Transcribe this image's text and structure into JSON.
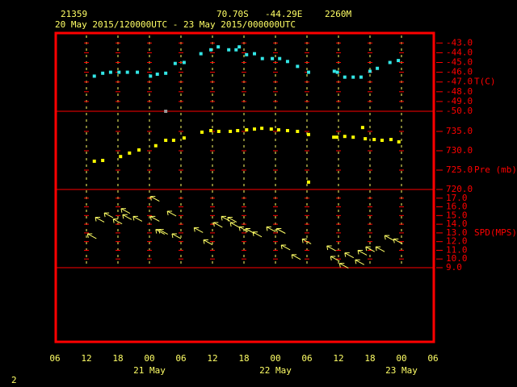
{
  "header": {
    "station": "21359",
    "latitude": "70.70S",
    "longitude": "-44.29E",
    "elevation": "2260M",
    "period": "20 May 2015/120000UTC - 23 May 2015/000000UTC",
    "page": "2"
  },
  "xaxis": {
    "xlim": [
      0,
      72
    ],
    "xticks": [
      {
        "value": 0,
        "label": "06"
      },
      {
        "value": 6,
        "label": "12"
      },
      {
        "value": 12,
        "label": "18"
      },
      {
        "value": 18,
        "label": "00"
      },
      {
        "value": 24,
        "label": "06"
      },
      {
        "value": 30,
        "label": "12"
      },
      {
        "value": 36,
        "label": "18"
      },
      {
        "value": 42,
        "label": "00"
      },
      {
        "value": 48,
        "label": "06"
      },
      {
        "value": 54,
        "label": "12"
      },
      {
        "value": 60,
        "label": "18"
      },
      {
        "value": 66,
        "label": "00"
      },
      {
        "value": 72,
        "label": "06"
      }
    ],
    "day_labels": [
      {
        "value": 18,
        "label": "21 May"
      },
      {
        "value": 42,
        "label": "22 May"
      },
      {
        "value": 66,
        "label": "23 May"
      }
    ]
  },
  "chart_data": [
    {
      "type": "scatter",
      "ylabel": "T(C)",
      "ylim": [
        -50,
        -41.9
      ],
      "yticks": [
        {
          "value": -43,
          "label": "-43.0"
        },
        {
          "value": -44,
          "label": "-44.0"
        },
        {
          "value": -45,
          "label": "-45.0"
        },
        {
          "value": -46,
          "label": "-46.0"
        },
        {
          "value": -47,
          "label": "-47.0"
        },
        {
          "value": -48,
          "label": "-48.0"
        },
        {
          "value": -49,
          "label": "-49.0"
        },
        {
          "value": -50,
          "label": "-50.0"
        }
      ],
      "series": [
        {
          "color": "#33e6e6",
          "x": [
            7.5,
            9.1,
            10.6,
            12.2,
            13.8,
            15.7,
            18.2,
            19.5,
            21.1,
            22.9,
            24.6,
            27.8,
            29.7,
            31.1,
            33.1,
            34.5,
            35.1,
            36.5,
            38,
            39.5,
            41.4,
            42.8,
            44.3,
            46.2,
            48.3,
            53.2,
            53.8,
            55.2,
            56.8,
            58.3,
            60,
            61.4,
            63.8,
            65.4
          ],
          "values": [
            -46.4,
            -46.1,
            -46.0,
            -46.0,
            -46.0,
            -46.0,
            -46.4,
            -46.2,
            -46.1,
            -45.1,
            -45.0,
            -44.1,
            -43.7,
            -43.4,
            -43.7,
            -43.7,
            -43.4,
            -44.2,
            -44.1,
            -44.6,
            -44.6,
            -44.6,
            -44.9,
            -45.4,
            -46.0,
            -45.9,
            -46.0,
            -46.5,
            -46.5,
            -46.5,
            -45.9,
            -45.6,
            -45.0,
            -44.8
          ]
        },
        {
          "color": "#999999",
          "x": [
            21.1
          ],
          "values": [
            -50.0
          ]
        }
      ]
    },
    {
      "type": "scatter",
      "ylabel": "Pre (mb)",
      "ylim": [
        720,
        740.2
      ],
      "yticks": [
        {
          "value": 735,
          "label": "735.0"
        },
        {
          "value": 730,
          "label": "730.0"
        },
        {
          "value": 725,
          "label": "725.0"
        },
        {
          "value": 720,
          "label": "720.0"
        }
      ],
      "series": [
        {
          "color": "#ffff00",
          "x": [
            7.5,
            9.1,
            12.5,
            14.2,
            16,
            19.2,
            21.1,
            22.6,
            24.6,
            28,
            29.7,
            31.2,
            33.4,
            34.8,
            36.5,
            38,
            39.4,
            41.2,
            42.6,
            44.3,
            46.2,
            48.3,
            48.3,
            53.1,
            53.7,
            55.2,
            56.8,
            58.6,
            59.1,
            60.8,
            62.3,
            64,
            65.5
          ],
          "values": [
            727.3,
            727.5,
            728.5,
            729.4,
            730.2,
            731.3,
            732.7,
            732.7,
            733.3,
            734.8,
            735.2,
            735.0,
            735.0,
            735.2,
            735.4,
            735.6,
            735.8,
            735.6,
            735.4,
            735.2,
            735.0,
            734.2,
            721.9,
            733.5,
            733.5,
            733.7,
            733.5,
            736.0,
            733.1,
            732.9,
            732.7,
            732.9,
            732.3
          ]
        }
      ]
    },
    {
      "type": "wind",
      "ylabel": "SPD(MPS)",
      "ylim": [
        9,
        18
      ],
      "yticks": [
        {
          "value": 17,
          "label": "17.0"
        },
        {
          "value": 16,
          "label": "16.0"
        },
        {
          "value": 15,
          "label": "15.0"
        },
        {
          "value": 14,
          "label": "14.0"
        },
        {
          "value": 13,
          "label": "13.0"
        },
        {
          "value": 12,
          "label": "12.0"
        },
        {
          "value": 11,
          "label": "11.0"
        },
        {
          "value": 10,
          "label": "10.0"
        },
        {
          "value": 9,
          "label": "9.0"
        }
      ],
      "series": [
        {
          "color": "#ffff66",
          "x": [
            6.2,
            7.7,
            9.4,
            11.1,
            12.6,
            12.9,
            14.9,
            18.2,
            18.2,
            19.2,
            21.4,
            19.8,
            22.3,
            26.5,
            28.3,
            30.2,
            31.7,
            32.9,
            33.4,
            35.1,
            36.3,
            37.7,
            40.3,
            42.2,
            43.1,
            45.1,
            47.1,
            51.8,
            52.5,
            54.2,
            55.2,
            57.2,
            57.7,
            59.2,
            61.1,
            62.8,
            64.5
          ],
          "values": [
            12.9,
            14.8,
            15.3,
            14.6,
            15.8,
            15.1,
            14.9,
            17.2,
            14.9,
            13.4,
            15.5,
            13.4,
            12.9,
            13.6,
            12.2,
            14.2,
            14.9,
            14.8,
            14.2,
            13.7,
            13.5,
            13.1,
            13.7,
            13.5,
            11.6,
            10.5,
            12.3,
            11.5,
            10.3,
            9.5,
            10.7,
            9.9,
            11.0,
            11.4,
            11.4,
            12.7,
            12.3
          ]
        }
      ]
    }
  ]
}
